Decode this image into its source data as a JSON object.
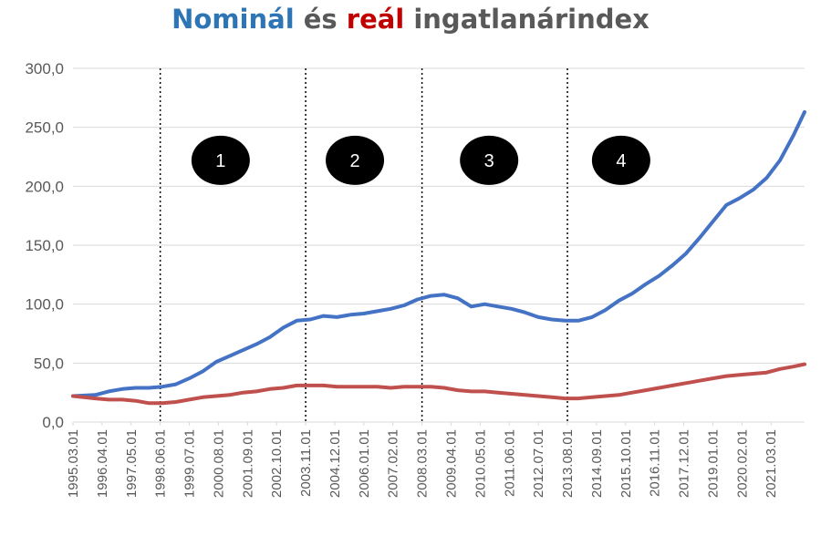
{
  "title": {
    "part1": "Nominál",
    "part2": " és ",
    "part3": "reál",
    "part4": " ingatlanárindex"
  },
  "colors": {
    "nominal": "#4472c4",
    "real": "#c0504d",
    "grid": "#d9d9d9",
    "text": "#595959",
    "marker": "#000000"
  },
  "chart_data": {
    "type": "line",
    "ylim": [
      0,
      300
    ],
    "y_ticks": [
      "0,0",
      "50,0",
      "100,0",
      "150,0",
      "200,0",
      "250,0",
      "300,0"
    ],
    "x_ticks": [
      "1995.03.01",
      "1996.04.01",
      "1997.05.01",
      "1998.06.01",
      "1999.07.01",
      "2000.08.01",
      "2001.09.01",
      "2002.10.01",
      "2003.11.01",
      "2004.12.01",
      "2006.01.01",
      "2007.02.01",
      "2008.03.01",
      "2009.04.01",
      "2010.05.01",
      "2011.06.01",
      "2012.07.01",
      "2013.08.01",
      "2014.09.01",
      "2015.10.01",
      "2016.11.01",
      "2017.12.01",
      "2019.01.01",
      "2020.02.01",
      "2021.03.01"
    ],
    "x_range": [
      "1995.03.01",
      "2022.06.01"
    ],
    "grid": "horizontal",
    "series": [
      {
        "key": "nominal",
        "points": [
          [
            "1995.03.01",
            22
          ],
          [
            "1996.01.01",
            23
          ],
          [
            "1996.07.01",
            26
          ],
          [
            "1997.01.01",
            28
          ],
          [
            "1997.07.01",
            29
          ],
          [
            "1998.01.01",
            29
          ],
          [
            "1998.07.01",
            30
          ],
          [
            "1999.01.01",
            32
          ],
          [
            "1999.07.01",
            37
          ],
          [
            "2000.01.01",
            43
          ],
          [
            "2000.07.01",
            51
          ],
          [
            "2001.01.01",
            56
          ],
          [
            "2001.07.01",
            61
          ],
          [
            "2002.01.01",
            66
          ],
          [
            "2002.07.01",
            72
          ],
          [
            "2003.01.01",
            80
          ],
          [
            "2003.07.01",
            86
          ],
          [
            "2004.01.01",
            87
          ],
          [
            "2004.07.01",
            90
          ],
          [
            "2005.01.01",
            89
          ],
          [
            "2005.07.01",
            91
          ],
          [
            "2006.01.01",
            92
          ],
          [
            "2006.07.01",
            94
          ],
          [
            "2007.01.01",
            96
          ],
          [
            "2007.07.01",
            99
          ],
          [
            "2008.01.01",
            104
          ],
          [
            "2008.07.01",
            107
          ],
          [
            "2009.01.01",
            108
          ],
          [
            "2009.07.01",
            105
          ],
          [
            "2010.01.01",
            98
          ],
          [
            "2010.07.01",
            100
          ],
          [
            "2011.01.01",
            98
          ],
          [
            "2011.07.01",
            96
          ],
          [
            "2012.01.01",
            93
          ],
          [
            "2012.07.01",
            89
          ],
          [
            "2013.01.01",
            87
          ],
          [
            "2013.07.01",
            86
          ],
          [
            "2014.01.01",
            86
          ],
          [
            "2014.07.01",
            89
          ],
          [
            "2015.01.01",
            95
          ],
          [
            "2015.07.01",
            103
          ],
          [
            "2016.01.01",
            109
          ],
          [
            "2016.07.01",
            117
          ],
          [
            "2017.01.01",
            124
          ],
          [
            "2017.07.01",
            133
          ],
          [
            "2018.01.01",
            143
          ],
          [
            "2018.07.01",
            156
          ],
          [
            "2019.01.01",
            170
          ],
          [
            "2019.07.01",
            184
          ],
          [
            "2020.01.01",
            190
          ],
          [
            "2020.07.01",
            197
          ],
          [
            "2021.01.01",
            207
          ],
          [
            "2021.07.01",
            222
          ],
          [
            "2022.01.01",
            243
          ],
          [
            "2022.06.01",
            263
          ]
        ]
      },
      {
        "key": "real",
        "points": [
          [
            "1995.03.01",
            22
          ],
          [
            "1996.01.01",
            20
          ],
          [
            "1996.07.01",
            19
          ],
          [
            "1997.01.01",
            19
          ],
          [
            "1997.07.01",
            18
          ],
          [
            "1998.01.01",
            16
          ],
          [
            "1998.07.01",
            16
          ],
          [
            "1999.01.01",
            17
          ],
          [
            "1999.07.01",
            19
          ],
          [
            "2000.01.01",
            21
          ],
          [
            "2000.07.01",
            22
          ],
          [
            "2001.01.01",
            23
          ],
          [
            "2001.07.01",
            25
          ],
          [
            "2002.01.01",
            26
          ],
          [
            "2002.07.01",
            28
          ],
          [
            "2003.01.01",
            29
          ],
          [
            "2003.07.01",
            31
          ],
          [
            "2004.01.01",
            31
          ],
          [
            "2004.07.01",
            31
          ],
          [
            "2005.01.01",
            30
          ],
          [
            "2005.07.01",
            30
          ],
          [
            "2006.01.01",
            30
          ],
          [
            "2006.07.01",
            30
          ],
          [
            "2007.01.01",
            29
          ],
          [
            "2007.07.01",
            30
          ],
          [
            "2008.01.01",
            30
          ],
          [
            "2008.07.01",
            30
          ],
          [
            "2009.01.01",
            29
          ],
          [
            "2009.07.01",
            27
          ],
          [
            "2010.01.01",
            26
          ],
          [
            "2010.07.01",
            26
          ],
          [
            "2011.01.01",
            25
          ],
          [
            "2011.07.01",
            24
          ],
          [
            "2012.01.01",
            23
          ],
          [
            "2012.07.01",
            22
          ],
          [
            "2013.01.01",
            21
          ],
          [
            "2013.07.01",
            20
          ],
          [
            "2014.01.01",
            20
          ],
          [
            "2014.07.01",
            21
          ],
          [
            "2015.01.01",
            22
          ],
          [
            "2015.07.01",
            23
          ],
          [
            "2016.01.01",
            25
          ],
          [
            "2016.07.01",
            27
          ],
          [
            "2017.01.01",
            29
          ],
          [
            "2017.07.01",
            31
          ],
          [
            "2018.01.01",
            33
          ],
          [
            "2018.07.01",
            35
          ],
          [
            "2019.01.01",
            37
          ],
          [
            "2019.07.01",
            39
          ],
          [
            "2020.01.01",
            40
          ],
          [
            "2020.07.01",
            41
          ],
          [
            "2021.01.01",
            42
          ],
          [
            "2021.07.01",
            45
          ],
          [
            "2022.01.01",
            47
          ],
          [
            "2022.06.01",
            49
          ]
        ]
      }
    ],
    "period_dividers": [
      "1998.06.01",
      "2003.11.01",
      "2008.03.01",
      "2013.08.01"
    ],
    "phase_labels": [
      {
        "text": "1",
        "x": "2000.09.01",
        "y": 222
      },
      {
        "text": "2",
        "x": "2005.09.01",
        "y": 222
      },
      {
        "text": "3",
        "x": "2010.09.01",
        "y": 222
      },
      {
        "text": "4",
        "x": "2015.08.01",
        "y": 222
      }
    ]
  }
}
